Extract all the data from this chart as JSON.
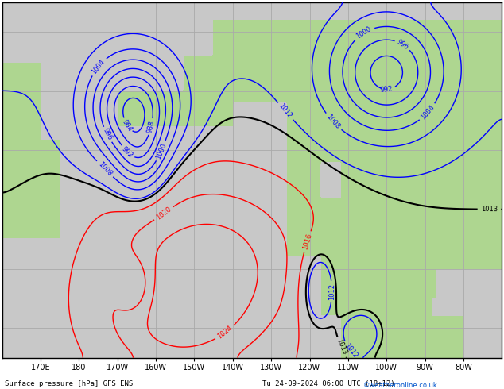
{
  "title": "Surface pressure [hPa] GFS ENS",
  "date_label": "Tu 24-09-2024 06:00 UTC (18+12)",
  "copyright": "©weatheronline.co.uk",
  "background_ocean": "#c8c8c8",
  "background_land": "#aed690",
  "grid_color": "#aaaaaa",
  "figsize": [
    6.34,
    4.9
  ],
  "dpi": 100,
  "xlim": [
    160,
    290
  ],
  "ylim": [
    15,
    75
  ],
  "xticks": [
    170,
    180,
    190,
    200,
    210,
    220,
    230,
    240,
    250,
    260,
    270,
    280
  ],
  "xtick_labels": [
    "170E",
    "180",
    "170W",
    "160W",
    "150W",
    "140W",
    "130W",
    "120W",
    "110W",
    "100W",
    "90W",
    "80W"
  ],
  "contour_blue_values": [
    984,
    988,
    992,
    996,
    1000,
    1004,
    1008,
    1012
  ],
  "contour_black_values": [
    1013
  ],
  "contour_red_values": [
    1016,
    1020,
    1024
  ],
  "label_fontsize": 6,
  "axis_label_fontsize": 7
}
